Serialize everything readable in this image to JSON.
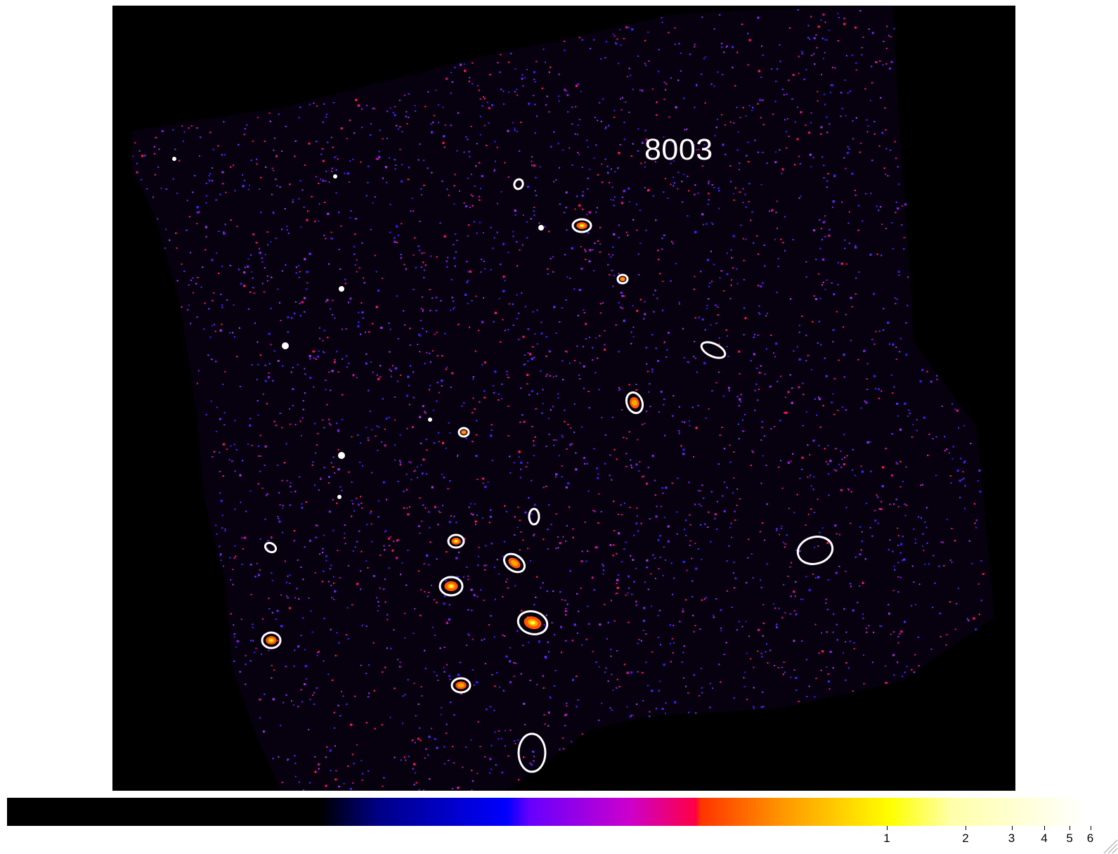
{
  "image": {
    "field_label": "8003",
    "background_color": "#000000",
    "photon_colors": [
      "#4422ff",
      "#5a2cff",
      "#3a1aee",
      "#7a20ee",
      "#9933dd",
      "#cc1188",
      "#ff1155"
    ],
    "region_color": "#ffffff",
    "source_core_colors": [
      "#ffff33",
      "#ffaa00",
      "#ff5500"
    ]
  },
  "colorbar": {
    "ticks": [
      {
        "label": "1",
        "value": 1
      },
      {
        "label": "2",
        "value": 2
      },
      {
        "label": "3",
        "value": 3
      },
      {
        "label": "4",
        "value": 4
      },
      {
        "label": "5",
        "value": 5
      },
      {
        "label": "6",
        "value": 6
      }
    ],
    "scale": "log",
    "colormap": [
      "#000000",
      "#000088",
      "#0000ff",
      "#cc00cc",
      "#ff0044",
      "#ff9900",
      "#ffff00",
      "#ffffff"
    ]
  }
}
